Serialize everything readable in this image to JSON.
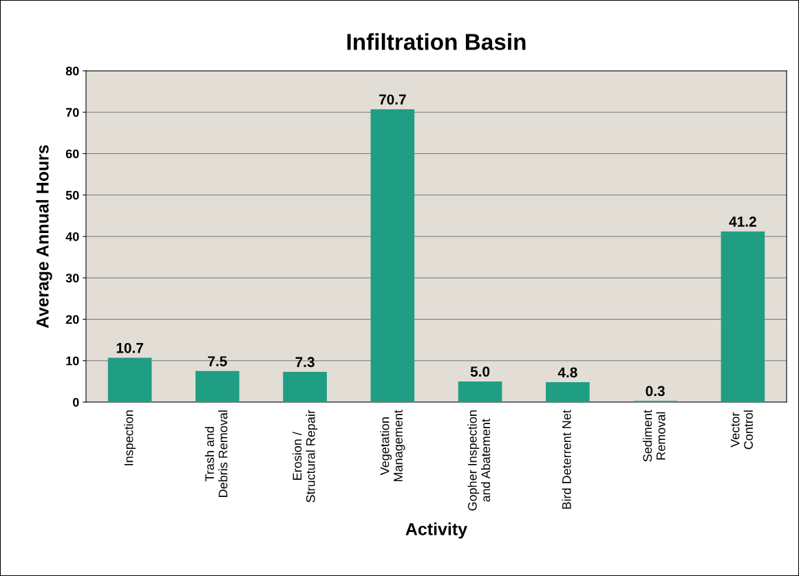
{
  "chart_data": {
    "type": "bar",
    "title": "Infiltration Basin",
    "xlabel": "Activity",
    "ylabel": "Average Annual Hours",
    "categories": [
      "Inspection",
      "Trash and\nDebris Removal",
      "Erosion /\nStructural Repair",
      "Vegetation\nManagement",
      "Gopher Inspection\nand Abatement",
      "Bird Deterrent Net",
      "Sediment\nRemoval",
      "Vector\nControl"
    ],
    "values": [
      10.7,
      7.5,
      7.3,
      70.7,
      5.0,
      4.8,
      0.3,
      41.2
    ],
    "color": "#1f9e83",
    "ylim": [
      0,
      80
    ],
    "yticks": [
      0,
      10,
      20,
      30,
      40,
      50,
      60,
      70,
      80
    ],
    "grid": "y",
    "value_labels": [
      "10.7",
      "7.5",
      "7.3",
      "70.7",
      "5.0",
      "4.8",
      "0.3",
      "41.2"
    ],
    "legend": false
  }
}
